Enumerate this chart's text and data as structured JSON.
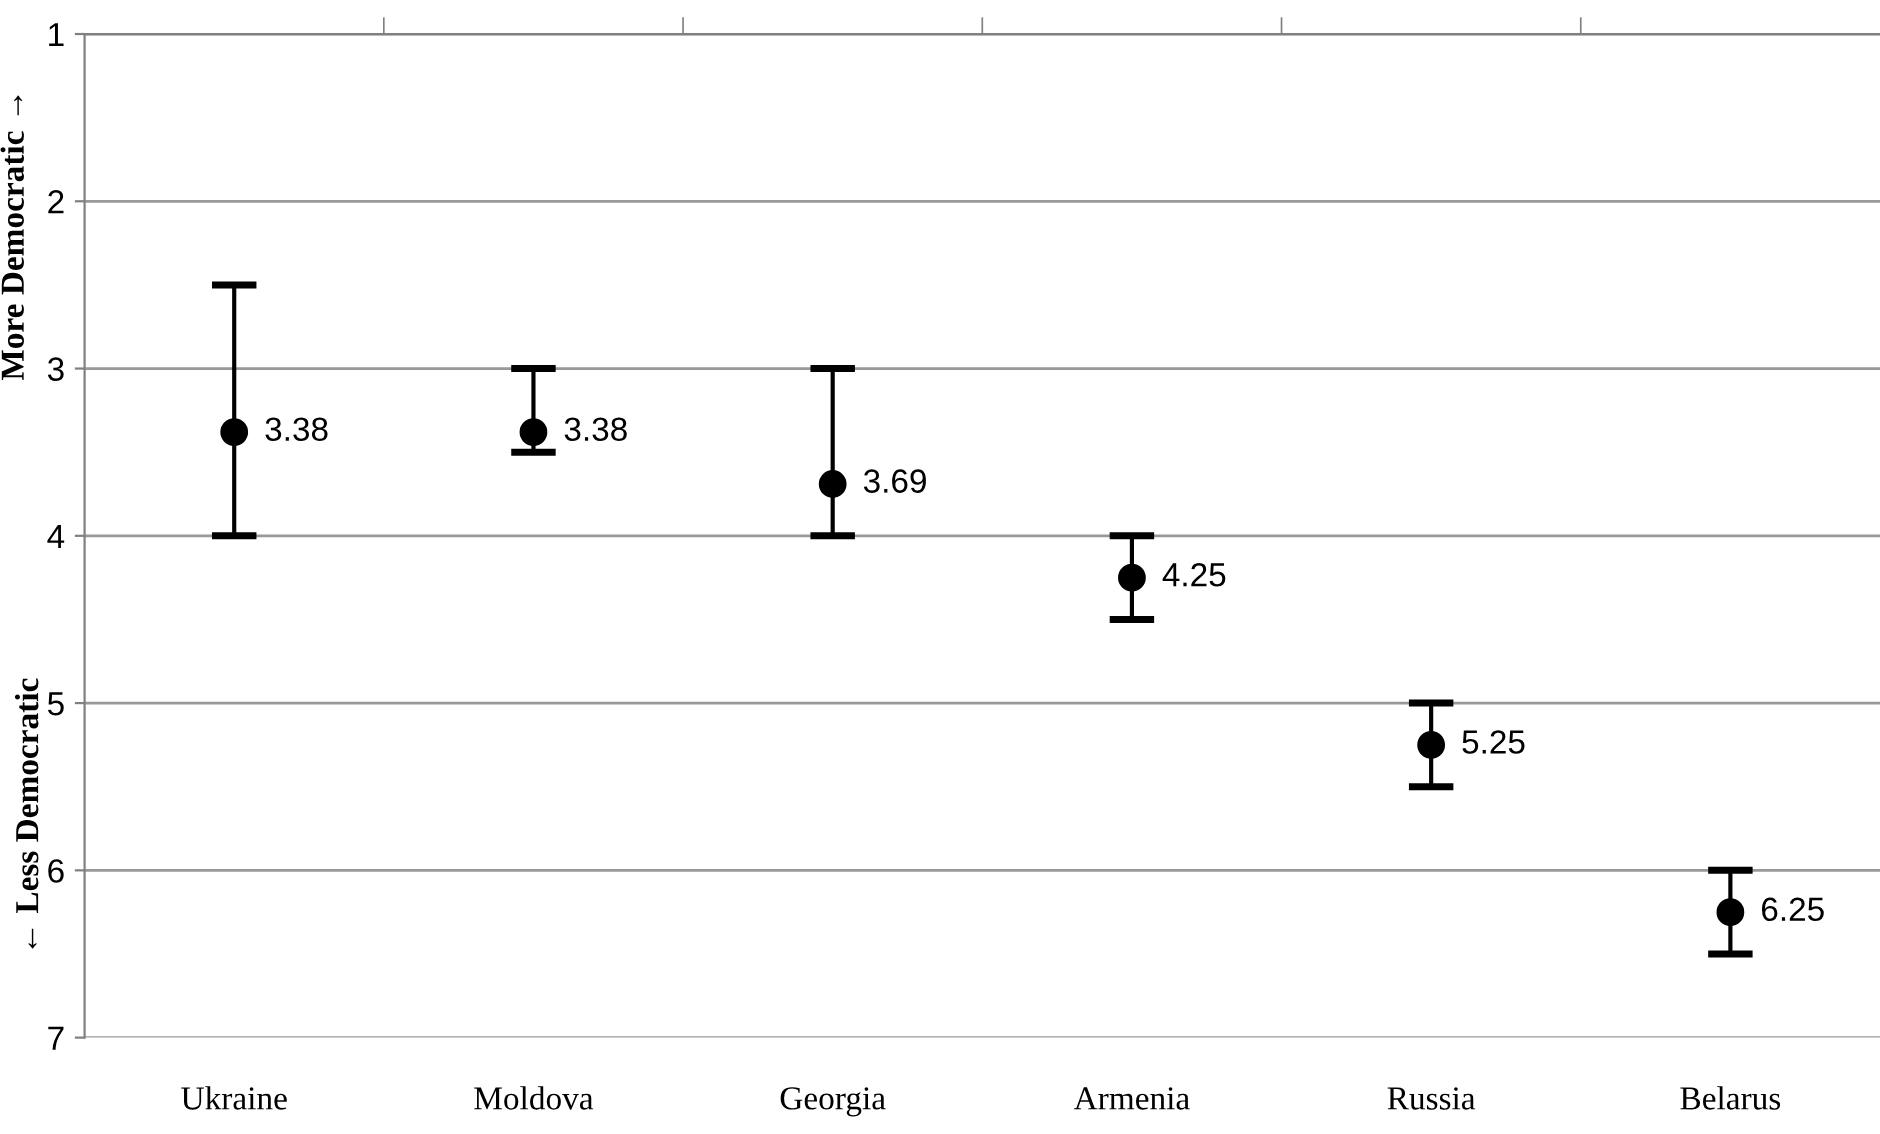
{
  "chart_data": {
    "type": "scatter",
    "categories": [
      "Ukraine",
      "Moldova",
      "Georgia",
      "Armenia",
      "Russia",
      "Belarus"
    ],
    "series": [
      {
        "color": "#000000",
        "values": [
          3.38,
          3.38,
          3.69,
          4.25,
          5.25,
          6.25
        ],
        "errors": [
          [
            2.5,
            4.0
          ],
          [
            3.0,
            3.5
          ],
          [
            3.0,
            4.0
          ],
          [
            4.0,
            4.5
          ],
          [
            5.0,
            5.5
          ],
          [
            6.0,
            6.5
          ]
        ]
      }
    ],
    "ylabel": "More Democratic →",
    "annotations": [
      "← Less Democratic"
    ],
    "ylim": [
      7,
      1
    ],
    "yticks": [
      1,
      2,
      3,
      4,
      5,
      6,
      7
    ],
    "grid": "y",
    "marker": "circle",
    "data_labels": true
  }
}
